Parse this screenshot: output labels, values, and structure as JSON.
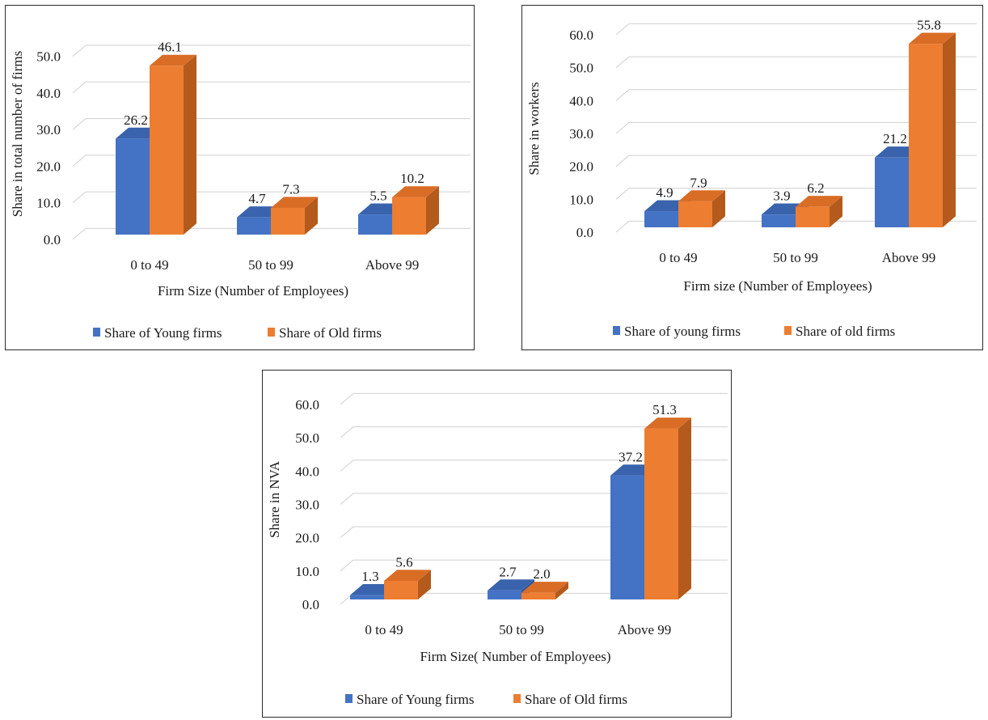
{
  "colors": {
    "young": "#4472c4",
    "young_top": "#3a63ad",
    "young_side": "#2f5597",
    "old": "#ed7d31",
    "old_top": "#d96d26",
    "old_side": "#b45a1c",
    "grid": "#d0d0d0"
  },
  "chart_data": [
    {
      "type": "bar",
      "categories": [
        "0 to 49",
        "50 to 99",
        "Above 99"
      ],
      "series": [
        {
          "name": "Share of Young firms",
          "values": [
            26.2,
            4.7,
            5.5
          ]
        },
        {
          "name": "Share of Old firms",
          "values": [
            46.1,
            7.3,
            10.2
          ]
        }
      ],
      "value_labels": [
        [
          "26.2",
          "4.7",
          "5.5"
        ],
        [
          "46.1",
          "7.3",
          "10.2"
        ]
      ],
      "yticks": [
        "0.0",
        "10.0",
        "20.0",
        "30.0",
        "40.0",
        "50.0"
      ],
      "ylim": [
        0,
        55
      ],
      "xlabel": "Firm Size (Number of Employees)",
      "ylabel": "Share in total number of firms",
      "grid": true,
      "legend": "bottom"
    },
    {
      "type": "bar",
      "categories": [
        "0 to 49",
        "50 to 99",
        "Above 99"
      ],
      "series": [
        {
          "name": "Share of young firms",
          "values": [
            4.9,
            3.9,
            21.2
          ]
        },
        {
          "name": "Share of old firms",
          "values": [
            7.9,
            6.2,
            55.8
          ]
        }
      ],
      "value_labels": [
        [
          "4.9",
          "3.9",
          "21.2"
        ],
        [
          "7.9",
          "6.2",
          "55.8"
        ]
      ],
      "yticks": [
        "0.0",
        "10.0",
        "20.0",
        "30.0",
        "40.0",
        "50.0",
        "60.0"
      ],
      "ylim": [
        0,
        60
      ],
      "xlabel": "Firm size (Number of Employees)",
      "ylabel": "Share in workers",
      "grid": true,
      "legend": "bottom"
    },
    {
      "type": "bar",
      "categories": [
        "0 to 49",
        "50 to 99",
        "Above 99"
      ],
      "series": [
        {
          "name": "Share of Young firms",
          "values": [
            1.3,
            2.7,
            37.2
          ]
        },
        {
          "name": "Share of Old firms",
          "values": [
            5.6,
            2.0,
            51.3
          ]
        }
      ],
      "value_labels": [
        [
          "1.3",
          "2.7",
          "37.2"
        ],
        [
          "5.6",
          "2.0",
          "51.3"
        ]
      ],
      "yticks": [
        "0.0",
        "10.0",
        "20.0",
        "30.0",
        "40.0",
        "50.0",
        "60.0"
      ],
      "ylim": [
        0,
        60
      ],
      "xlabel": "Firm Size( Number of Employees)",
      "ylabel": "Share in NVA",
      "grid": true,
      "legend": "bottom"
    }
  ]
}
